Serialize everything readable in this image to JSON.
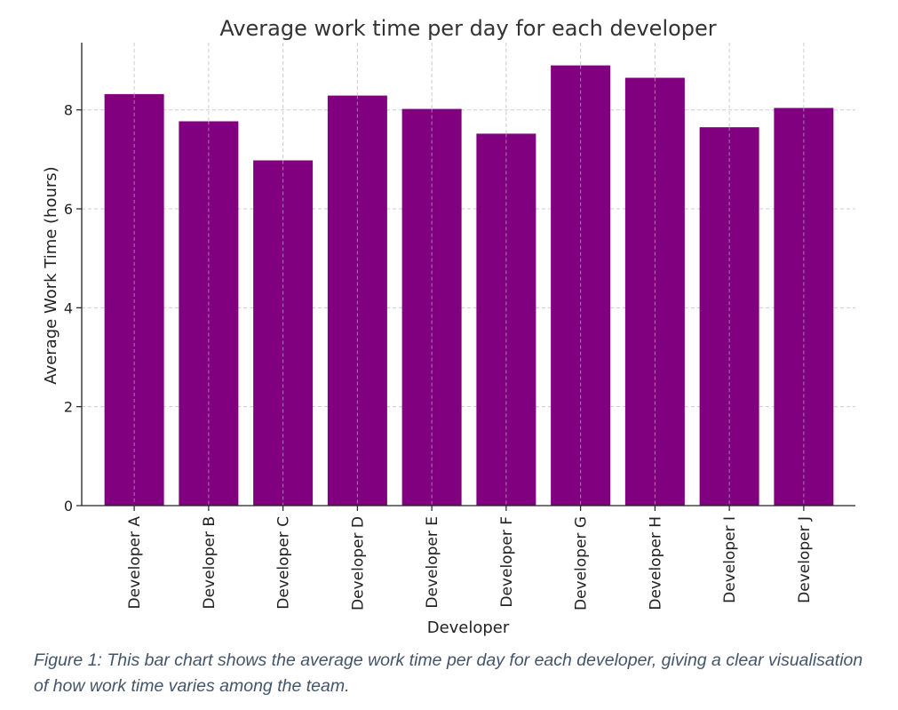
{
  "chart_data": {
    "type": "bar",
    "title": "Average work time per day for each developer",
    "xlabel": "Developer",
    "ylabel": "Average Work Time (hours)",
    "categories": [
      "Developer A",
      "Developer B",
      "Developer C",
      "Developer D",
      "Developer E",
      "Developer F",
      "Developer G",
      "Developer H",
      "Developer I",
      "Developer J"
    ],
    "values": [
      8.32,
      7.77,
      6.98,
      8.29,
      8.02,
      7.52,
      8.9,
      8.65,
      7.65,
      8.04
    ],
    "yticks": [
      0,
      2,
      4,
      6,
      8
    ],
    "ylim": [
      0,
      9.36
    ],
    "grid": true,
    "bar_color": "#800080"
  },
  "caption": "Figure 1: This bar chart shows the average work time per day for each developer, giving a clear visualisation of how work time varies among the team."
}
